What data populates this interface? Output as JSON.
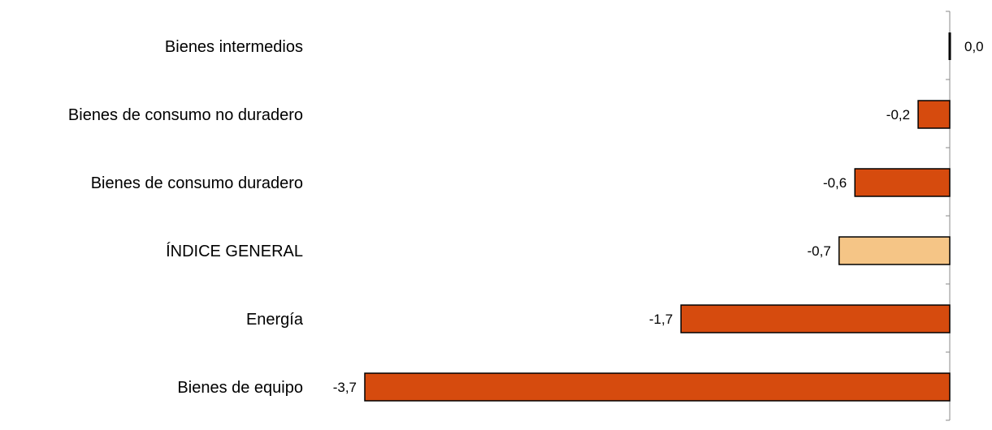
{
  "chart_data": {
    "type": "bar",
    "orientation": "horizontal",
    "categories": [
      "Bienes intermedios",
      "Bienes de consumo no duradero",
      "Bienes de consumo duradero",
      "ÍNDICE GENERAL",
      "Energía",
      "Bienes de equipo"
    ],
    "values": [
      0.0,
      -0.2,
      -0.6,
      -0.7,
      -1.7,
      -3.7
    ],
    "value_labels": [
      "0,0",
      "-0,2",
      "-0,6",
      "-0,7",
      "-1,7",
      "-3,7"
    ],
    "highlight_category": "ÍNDICE GENERAL",
    "xlim": [
      -3.7,
      0
    ],
    "grid": false,
    "legend": "none",
    "colors": {
      "bar": "#d64b0e",
      "highlight": "#f5c586",
      "outline": "#000000",
      "axis": "#888888"
    }
  }
}
